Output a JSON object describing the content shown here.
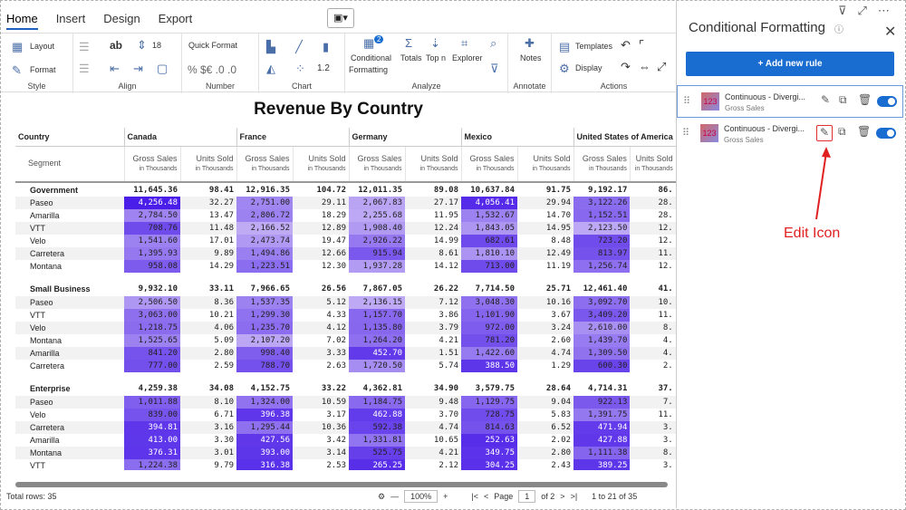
{
  "tabs": [
    "Home",
    "Insert",
    "Design",
    "Export"
  ],
  "ribbon": {
    "layout": "Layout",
    "format": "Format",
    "group_style": "Style",
    "group_align": "Align",
    "ab": "ab",
    "font_size": "18",
    "quick_format": "Quick Format",
    "number_symbols": "% $€ .0 .0",
    "decimals": "1.2",
    "group_number": "Number",
    "group_chart": "Chart",
    "conditional": "Conditional",
    "formatting": "Formatting",
    "totals": "Totals",
    "top_n": "Top n",
    "explorer": "Explorer",
    "analyze_badge": "2",
    "group_analyze": "Analyze",
    "notes": "Notes",
    "group_annotate": "Annotate",
    "templates": "Templates",
    "display": "Display",
    "group_actions": "Actions"
  },
  "title": "Revenue By Country",
  "table": {
    "country_label": "Country",
    "segment_label": "Segment",
    "countries": [
      "Canada",
      "France",
      "Germany",
      "Mexico",
      "United States of America"
    ],
    "gross": "Gross Sales",
    "units": "Units Sold",
    "in_thousands": "in Thousands",
    "groups": [
      {
        "name": "Government",
        "total": [
          "11,645.36",
          "98.41",
          "12,916.35",
          "104.72",
          "12,011.35",
          "89.08",
          "10,637.84",
          "91.75",
          "9,192.17",
          "86."
        ],
        "rows": [
          [
            "Paseo",
            "4,256.48",
            "32.27",
            "2,751.00",
            "29.11",
            "2,067.83",
            "27.17",
            "4,056.41",
            "29.94",
            "3,122.26",
            "28."
          ],
          [
            "Amarilla",
            "2,784.50",
            "13.47",
            "2,806.72",
            "18.29",
            "2,255.68",
            "11.95",
            "1,532.67",
            "14.70",
            "1,152.51",
            "28."
          ],
          [
            "VTT",
            "708.76",
            "11.48",
            "2,166.52",
            "12.89",
            "1,908.40",
            "12.24",
            "1,843.05",
            "14.95",
            "2,123.50",
            "12."
          ],
          [
            "Velo",
            "1,541.60",
            "17.01",
            "2,473.74",
            "19.47",
            "2,926.22",
            "14.99",
            "682.61",
            "8.48",
            "723.20",
            "12."
          ],
          [
            "Carretera",
            "1,395.93",
            "9.89",
            "1,494.86",
            "12.66",
            "915.94",
            "8.61",
            "1,810.10",
            "12.49",
            "813.97",
            "11."
          ],
          [
            "Montana",
            "958.08",
            "14.29",
            "1,223.51",
            "12.30",
            "1,937.28",
            "14.12",
            "713.00",
            "11.19",
            "1,256.74",
            "12."
          ]
        ]
      },
      {
        "name": "Small Business",
        "total": [
          "9,932.10",
          "33.11",
          "7,966.65",
          "26.56",
          "7,867.05",
          "26.22",
          "7,714.50",
          "25.71",
          "12,461.40",
          "41."
        ],
        "rows": [
          [
            "Paseo",
            "2,506.50",
            "8.36",
            "1,537.35",
            "5.12",
            "2,136.15",
            "7.12",
            "3,048.30",
            "10.16",
            "3,092.70",
            "10."
          ],
          [
            "VTT",
            "3,063.00",
            "10.21",
            "1,299.30",
            "4.33",
            "1,157.70",
            "3.86",
            "1,101.90",
            "3.67",
            "3,409.20",
            "11."
          ],
          [
            "Velo",
            "1,218.75",
            "4.06",
            "1,235.70",
            "4.12",
            "1,135.80",
            "3.79",
            "972.00",
            "3.24",
            "2,610.00",
            "8."
          ],
          [
            "Montana",
            "1,525.65",
            "5.09",
            "2,107.20",
            "7.02",
            "1,264.20",
            "4.21",
            "781.20",
            "2.60",
            "1,439.70",
            "4."
          ],
          [
            "Amarilla",
            "841.20",
            "2.80",
            "998.40",
            "3.33",
            "452.70",
            "1.51",
            "1,422.60",
            "4.74",
            "1,309.50",
            "4."
          ],
          [
            "Carretera",
            "777.00",
            "2.59",
            "788.70",
            "2.63",
            "1,720.50",
            "5.74",
            "388.50",
            "1.29",
            "600.30",
            "2."
          ]
        ]
      },
      {
        "name": "Enterprise",
        "total": [
          "4,259.38",
          "34.08",
          "4,152.75",
          "33.22",
          "4,362.81",
          "34.90",
          "3,579.75",
          "28.64",
          "4,714.31",
          "37."
        ],
        "rows": [
          [
            "Paseo",
            "1,011.88",
            "8.10",
            "1,324.00",
            "10.59",
            "1,184.75",
            "9.48",
            "1,129.75",
            "9.04",
            "922.13",
            "7."
          ],
          [
            "Velo",
            "839.00",
            "6.71",
            "396.38",
            "3.17",
            "462.88",
            "3.70",
            "728.75",
            "5.83",
            "1,391.75",
            "11."
          ],
          [
            "Carretera",
            "394.81",
            "3.16",
            "1,295.44",
            "10.36",
            "592.38",
            "4.74",
            "814.63",
            "6.52",
            "471.94",
            "3."
          ],
          [
            "Amarilla",
            "413.00",
            "3.30",
            "427.56",
            "3.42",
            "1,331.81",
            "10.65",
            "252.63",
            "2.02",
            "427.88",
            "3."
          ],
          [
            "Montana",
            "376.31",
            "3.01",
            "393.00",
            "3.14",
            "525.75",
            "4.21",
            "349.75",
            "2.80",
            "1,111.38",
            "8."
          ],
          [
            "VTT",
            "1,224.38",
            "9.79",
            "316.38",
            "2.53",
            "265.25",
            "2.12",
            "304.25",
            "2.43",
            "389.25",
            "3."
          ]
        ]
      }
    ]
  },
  "status": {
    "total_rows": "Total rows: 35",
    "zoom": "100%",
    "page_label": "Page",
    "page": "1",
    "of_pages": "of 2",
    "range": "1 to 21 of 35"
  },
  "panel": {
    "title": "Conditional Formatting",
    "add_rule": "+ Add new rule",
    "rules": [
      {
        "name": "Continuous - Divergi...",
        "sub": "Gross Sales"
      },
      {
        "name": "Continuous - Divergi...",
        "sub": "Gross Sales"
      }
    ],
    "thumb": "123",
    "edit_note": "Edit Icon"
  },
  "colors": {
    "accent": "#1a6dd0",
    "highlight_max": "#4a1de8",
    "highlight_min": "#c9b8f5",
    "annotation": "#e02020"
  }
}
